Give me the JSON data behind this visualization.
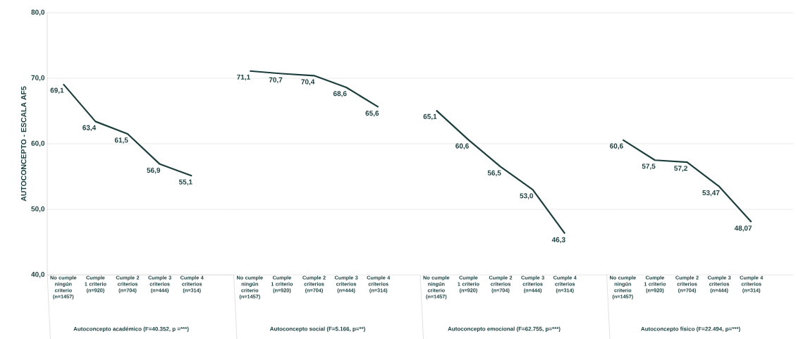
{
  "chart_data": [
    {
      "type": "line",
      "categories": [
        "No cumple ningún criterio (n=1457)",
        "Cumple 1 criterio (n=920)",
        "Cumple 2 criterios (n=704)",
        "Cumple 3 criterios (n=444)",
        "Cumple 4 criterios (n=314)"
      ],
      "values": [
        69.1,
        63.4,
        61.5,
        56.9,
        55.1
      ],
      "value_labels": [
        "69,1",
        "63,4",
        "61,5",
        "56,9",
        "55,1"
      ],
      "color": "#1b3d3b",
      "xlabel": "Autoconcepto académico (F=40.352, p =***)",
      "ylabel": "AUTOCONCEPTO - ESCALA AF5",
      "ylim": [
        40,
        80
      ],
      "yticks": [
        {
          "value": 40,
          "label": "40,0"
        },
        {
          "value": 50,
          "label": "50,0"
        },
        {
          "value": 60,
          "label": "60,0"
        },
        {
          "value": 70,
          "label": "70,0"
        },
        {
          "value": 80,
          "label": "80,0"
        }
      ],
      "grid": "y"
    },
    {
      "type": "line",
      "categories": [
        "No cumple ningún criterio (n=1457)",
        "Cumple 1 criterio (n=920)",
        "Cumple 2 criterios (n=704)",
        "Cumple 3 criterios (n=444)",
        "Cumple 4 criterios (n=314)"
      ],
      "values": [
        71.1,
        70.7,
        70.4,
        68.6,
        65.6
      ],
      "value_labels": [
        "71,1",
        "70,7",
        "70,4",
        "68,6",
        "65,6"
      ],
      "color": "#1b3d3b",
      "xlabel": "Autoconcepto social (F=5.166, p=**)",
      "ylim": [
        40,
        80
      ],
      "yticks": [
        50,
        60,
        70,
        80
      ],
      "grid": "y",
      "tick_labels": "x"
    },
    {
      "type": "line",
      "categories": [
        "No cumple ningún criterio (n=1457)",
        "Cumple 1 criterio (n=920)",
        "Cumple 2 criterios (n=704)",
        "Cumple 3 criterios (n=444)",
        "Cumple 4 criterios (n=314)"
      ],
      "values": [
        65.1,
        60.6,
        56.5,
        53.0,
        46.3
      ],
      "value_labels": [
        "65,1",
        "60,6",
        "56,5",
        "53,0",
        "46,3"
      ],
      "color": "#1b3d3b",
      "xlabel": "Autoconcepto emocional (F=62.755, p=***)",
      "ylim": [
        40,
        80
      ],
      "yticks": [
        50,
        60,
        70,
        80
      ],
      "grid": "y",
      "tick_labels": "x"
    },
    {
      "type": "line",
      "categories": [
        "No cumple ningún criterio (n=1457)",
        "Cumple 1 criterio (n=920)",
        "Cumple 2 criterios (n=704)",
        "Cumple 3 criterios (n=444)",
        "Cumple 4 criterios (n=314)"
      ],
      "values": [
        60.6,
        57.5,
        57.2,
        53.47,
        48.07
      ],
      "value_labels": [
        "60,6",
        "57,5",
        "57,2",
        "53,47",
        "48,07"
      ],
      "color": "#1b3d3b",
      "xlabel": "Autoconcepto físico (F=22.494, p=***)",
      "ylim": [
        40,
        80
      ],
      "yticks": [
        50,
        60,
        70,
        80
      ],
      "grid": "y",
      "tick_labels": "x"
    }
  ]
}
